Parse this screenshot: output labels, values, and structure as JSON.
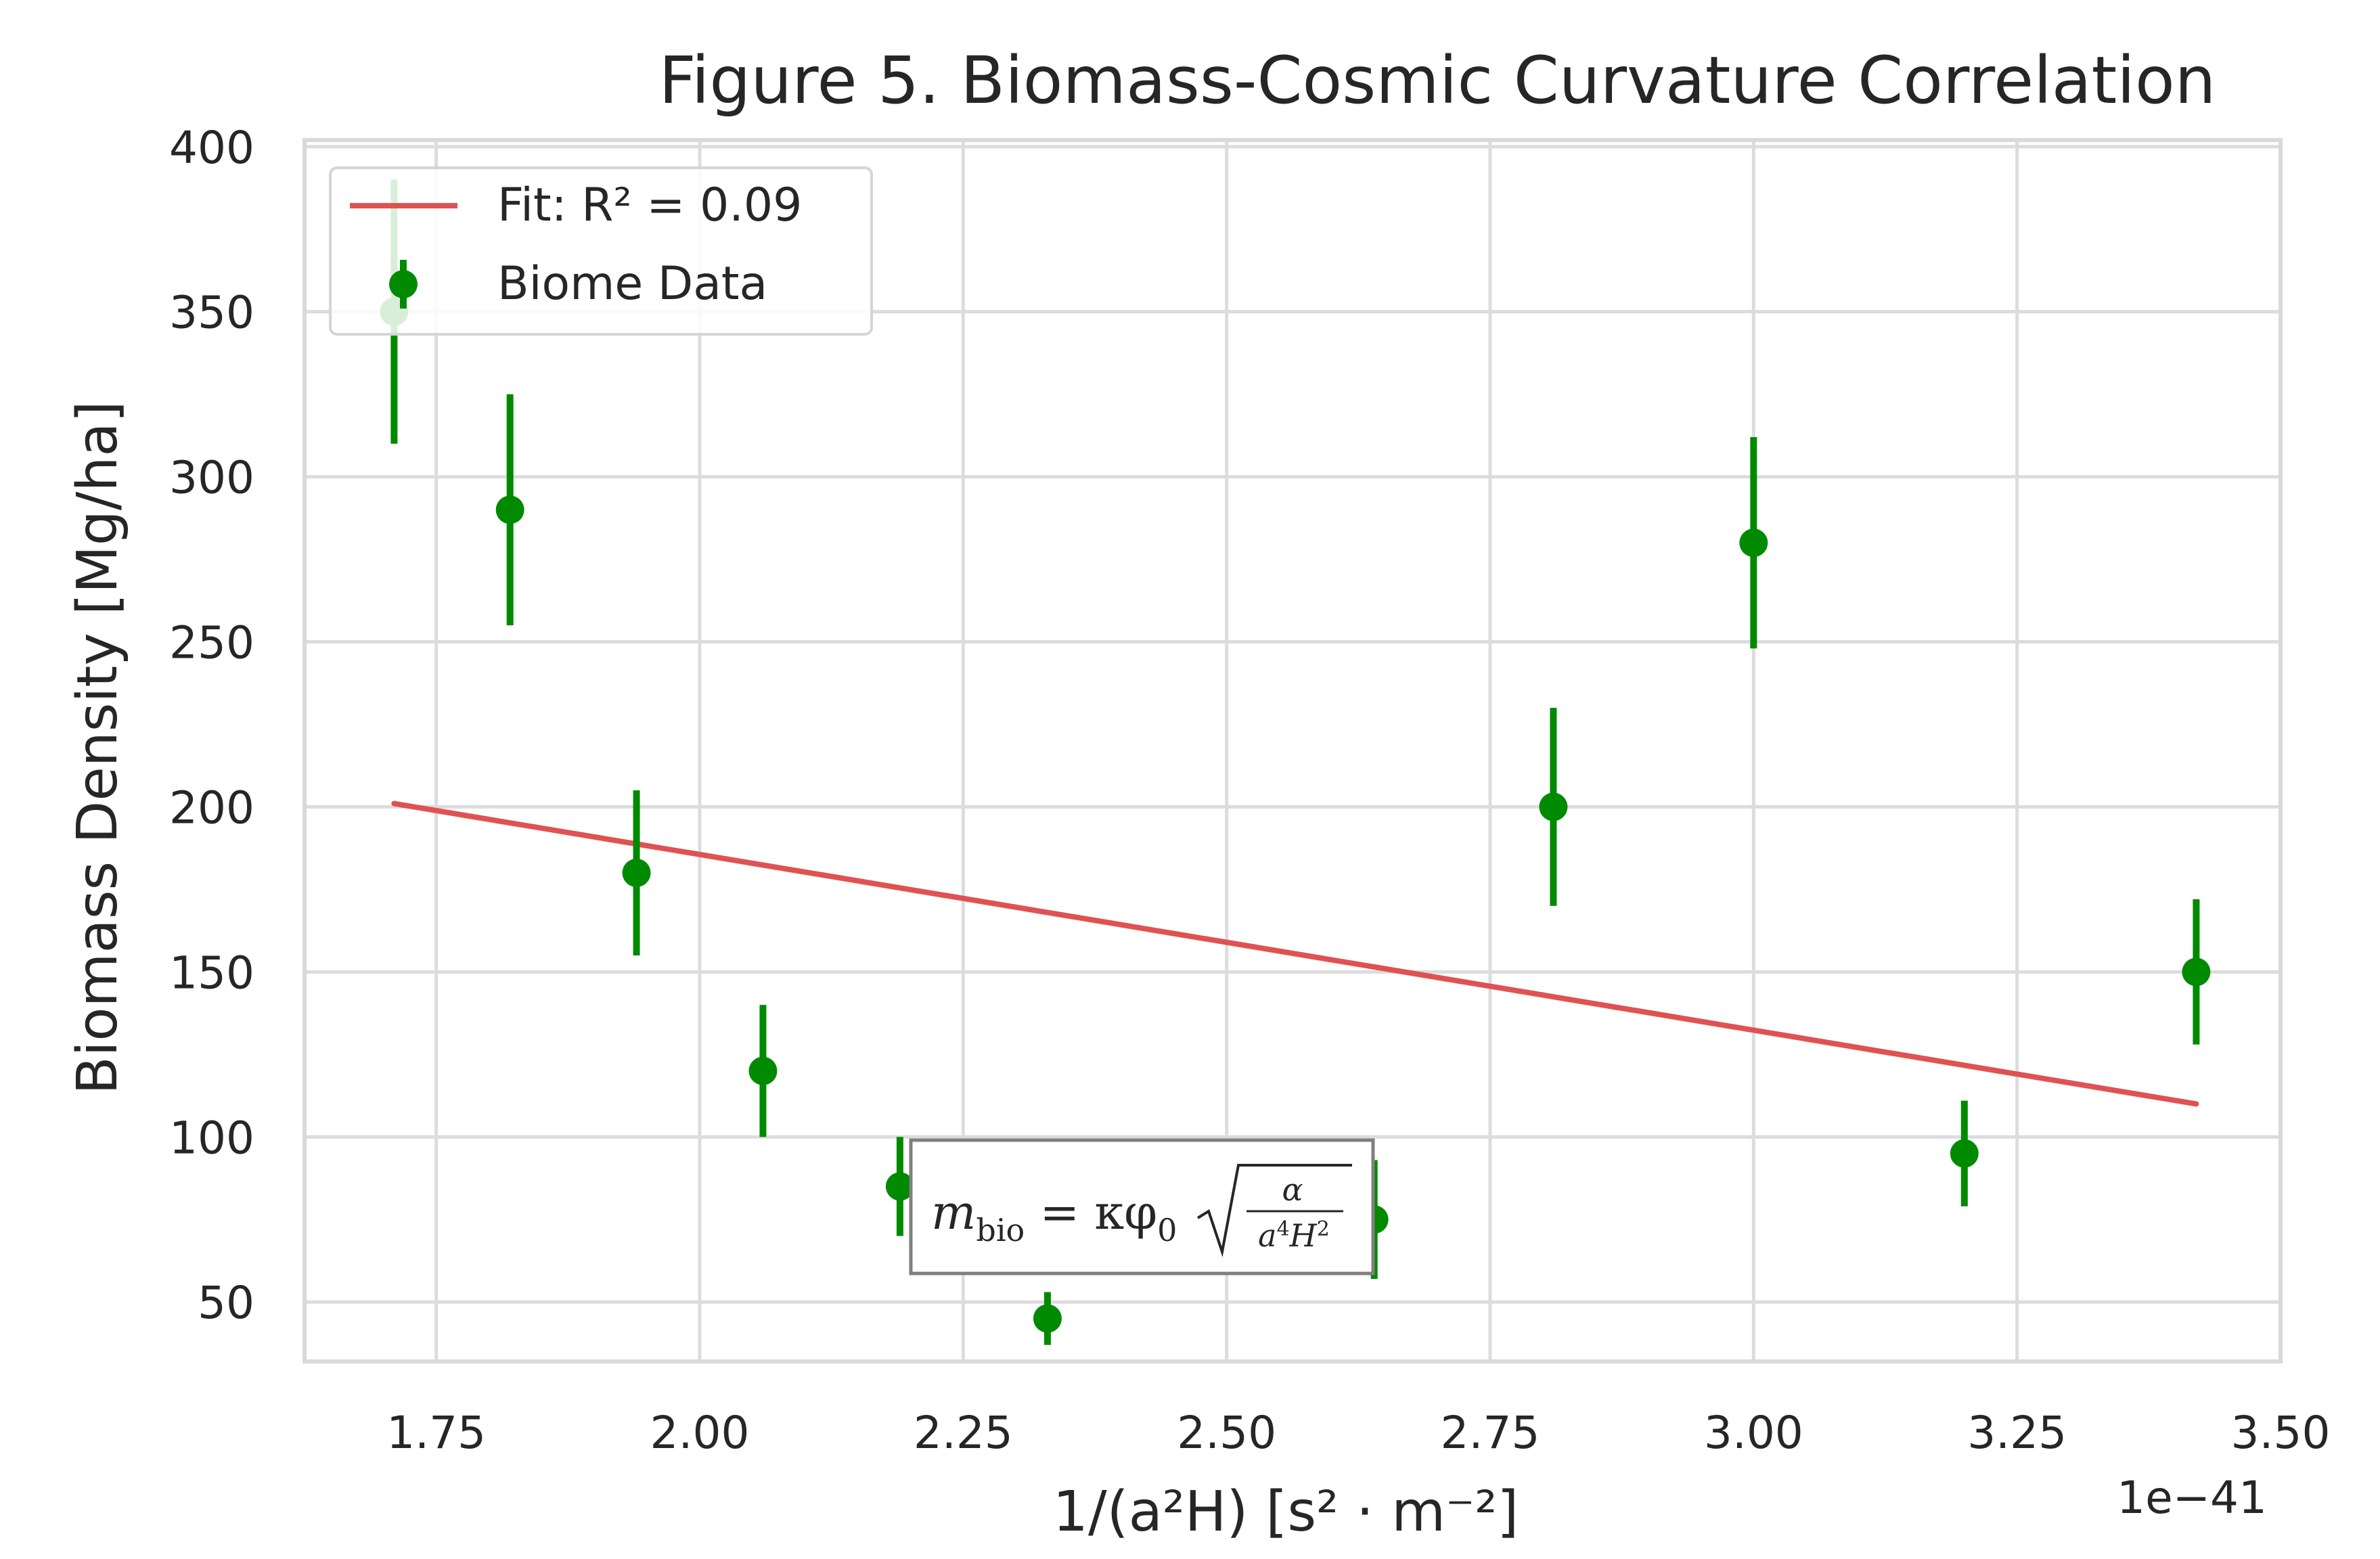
{
  "chart_data": {
    "type": "scatter",
    "title": "Figure 5. Biomass-Cosmic Curvature Correlation",
    "xlabel": "1/(a²H) [s² · m⁻²]",
    "ylabel": "Biomass Density [Mg/ha]",
    "x_offset_text": "1e−41",
    "x_scale": 1e-41,
    "xlim": [
      1.625,
      3.5
    ],
    "ylim": [
      32,
      402
    ],
    "x_ticks": [
      1.75,
      2.0,
      2.25,
      2.5,
      2.75,
      3.0,
      3.25,
      3.5
    ],
    "x_tick_labels": [
      "1.75",
      "2.00",
      "2.25",
      "2.50",
      "2.75",
      "3.00",
      "3.25",
      "3.50"
    ],
    "y_ticks": [
      50,
      100,
      150,
      200,
      250,
      300,
      350,
      400
    ],
    "y_tick_labels": [
      "50",
      "100",
      "150",
      "200",
      "250",
      "300",
      "350",
      "400"
    ],
    "grid": true,
    "legend_placement": "top-left",
    "series": [
      {
        "name": "Biome Data",
        "kind": "errorbar",
        "color": "#008a00",
        "x": [
          1.71,
          1.82,
          1.94,
          2.06,
          2.19,
          2.33,
          2.64,
          2.81,
          3.0,
          3.2,
          3.42
        ],
        "y": [
          350,
          290,
          180,
          120,
          85,
          45,
          75,
          200,
          280,
          95,
          150
        ],
        "yerr": [
          40,
          35,
          25,
          20,
          15,
          8,
          18,
          30,
          32,
          16,
          22
        ]
      },
      {
        "name": "Fit: R² = 0.09",
        "kind": "line",
        "color": "#e05252",
        "x": [
          1.71,
          3.42
        ],
        "y": [
          201,
          110
        ]
      }
    ],
    "legend": [
      {
        "label": "Fit: R² = 0.09",
        "marker": "line",
        "color": "#e05252"
      },
      {
        "label": "Biome Data",
        "marker": "point-errorbar",
        "color": "#008a00"
      }
    ],
    "annotation": {
      "text": "m_bio = κφ₀√(α / (a⁴H²))"
    }
  }
}
